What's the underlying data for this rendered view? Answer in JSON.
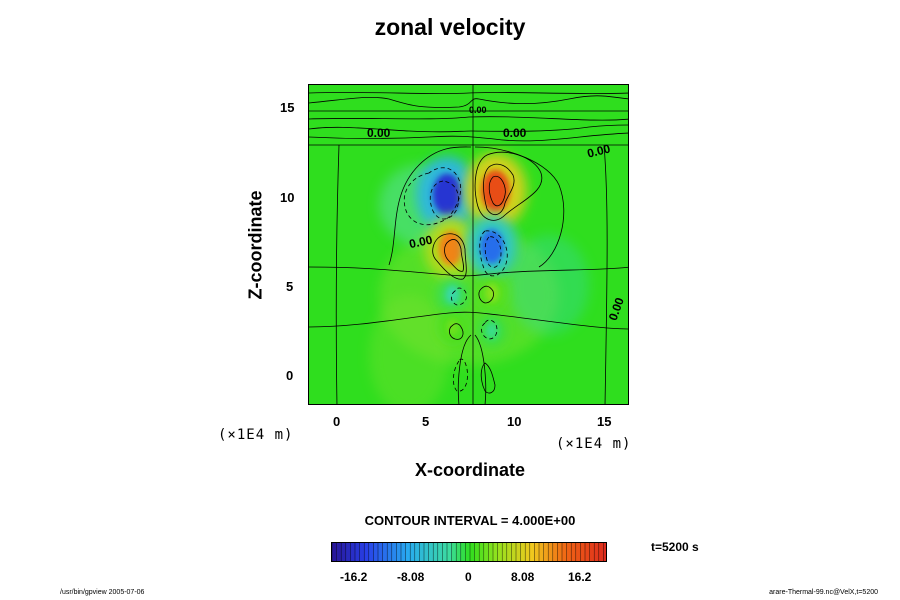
{
  "chart_data": {
    "type": "heatmap",
    "title": "zonal velocity",
    "xlabel": "X-coordinate",
    "ylabel": "Z-coordinate",
    "x_unit": "(×1E4 m)",
    "z_unit": "(×1E4 m)",
    "x_ticks": [
      "0",
      "5",
      "10",
      "15"
    ],
    "z_ticks": [
      "0",
      "5",
      "10",
      "15"
    ],
    "xlim": [
      -1.6,
      16.3
    ],
    "zlim": [
      -1.7,
      16.2
    ],
    "contour_interval": "CONTOUR INTERVAL = 4.000E+00",
    "contour_labels": [
      "0.00",
      "0.00",
      "0.00",
      "0.00",
      "0.00",
      "0.00"
    ],
    "colorbar_ticks": [
      "-16.2",
      "-8.08",
      "0",
      "8.08",
      "16.2"
    ],
    "colorbar_range": [
      -20.2,
      20.2
    ],
    "time": "t=5200 s",
    "extrema": [
      {
        "x": 6.1,
        "z": 10.1,
        "value": -16.5
      },
      {
        "x": 8.8,
        "z": 10.3,
        "value": 16.5
      },
      {
        "x": 6.3,
        "z": 7.1,
        "value": 12.5
      },
      {
        "x": 8.6,
        "z": 7.2,
        "value": -12.5
      },
      {
        "x": 6.4,
        "z": 4.5,
        "value": -3.5
      },
      {
        "x": 8.6,
        "z": 4.6,
        "value": 3.5
      },
      {
        "x": 6.4,
        "z": 2.7,
        "value": 2.5
      },
      {
        "x": 8.6,
        "z": 2.5,
        "value": -2.5
      }
    ]
  },
  "footer": {
    "left": "/usr/bin/gpview 2005-07-06",
    "right": "arare-Thermal-99.nc@VelX,t=5200"
  },
  "colors": {
    "background_field": "#2fde1e",
    "max_positive": "#e8371a",
    "max_negative": "#2840e8"
  }
}
